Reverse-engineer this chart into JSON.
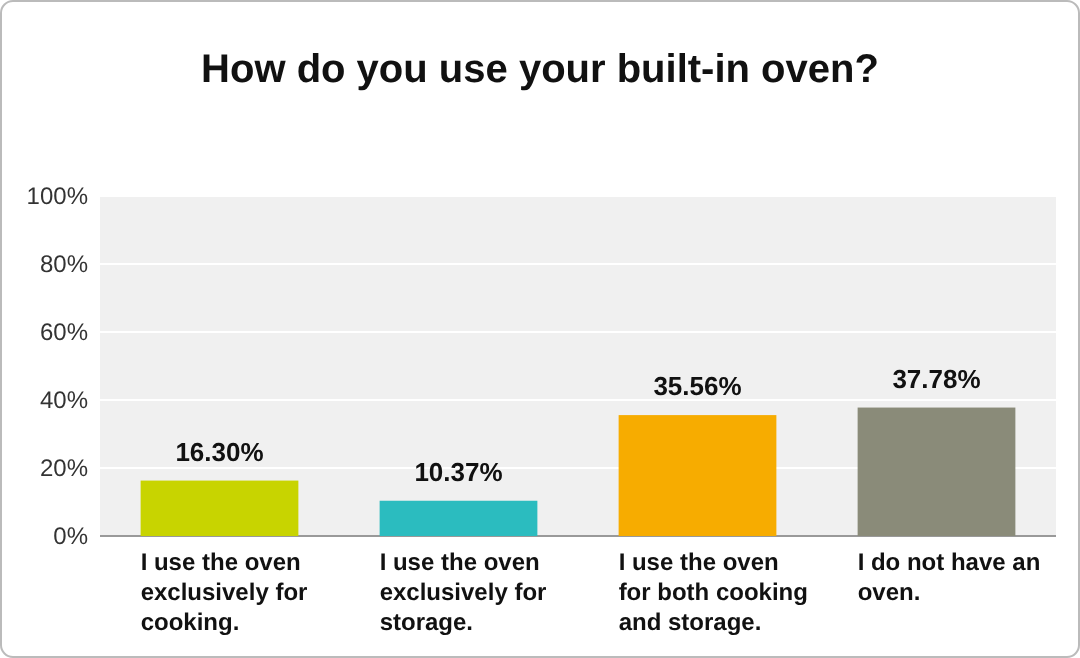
{
  "chart_data": {
    "type": "bar",
    "title": "How do you use your built-in oven?",
    "categories": [
      "I use the oven exclusively for cooking.",
      "I use the oven exclusively for storage.",
      "I use the oven for both cooking and storage.",
      "I do not have an oven."
    ],
    "values": [
      16.3,
      10.37,
      35.56,
      37.78
    ],
    "value_labels": [
      "16.30%",
      "10.37%",
      "35.56%",
      "37.78%"
    ],
    "colors": [
      "#c8d400",
      "#2bbcbf",
      "#f7ac00",
      "#8a8b79"
    ],
    "ylim": [
      0,
      100
    ],
    "yticks": [
      {
        "value": 0,
        "label": "0%"
      },
      {
        "value": 20,
        "label": "20%"
      },
      {
        "value": 40,
        "label": "40%"
      },
      {
        "value": 60,
        "label": "60%"
      },
      {
        "value": 80,
        "label": "80%"
      },
      {
        "value": 100,
        "label": "100%"
      }
    ],
    "grid": "y"
  }
}
